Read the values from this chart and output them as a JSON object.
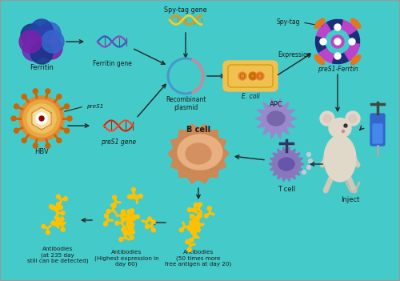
{
  "bg_color": "#45CACA",
  "text_color": "#1a1a1a",
  "labels": {
    "ferritin": "Ferritin",
    "ferritin_gene": "Ferritin gene",
    "spy_tag_gene": "Spy-tag gene",
    "recombinant_plasmid": "Recombinant\nplasmid",
    "ecoli": "E. coli",
    "expression": "Expression",
    "spy_tag": "Spy-tag",
    "preS1_ferritin": "preS1-Ferrtin",
    "preS1": "preS1",
    "preS1_gene": "preS1 gene",
    "hbv": "HBV",
    "b_cell": "B cell",
    "apc": "APC",
    "t_cell": "T cell",
    "inject": "Inject",
    "ab1": "Antibodies\n(50 times more\nfree antigen at day 20)",
    "ab2": "Antibodies\n(Highest expression in\nday 60)",
    "ab3": "Antibodies\n(at 235 day\nstill can be detected)"
  },
  "gold_color": "#FFC000",
  "blue_dark": "#1a2e7a",
  "blue_mid": "#2255cc",
  "blue_ring": "#1a3aaa",
  "purple": "#9944aa",
  "purple2": "#bb44cc",
  "red_dna": "#cc2200",
  "orange": "#e07820",
  "orange2": "#E8A030",
  "ecoli_color": "#F0C050",
  "cell_color": "#d4956a",
  "cell_inner": "#e8b88a",
  "apc_color": "#9988cc",
  "tcell_color": "#8877bb",
  "mouse_color": "#e0d8c8",
  "syringe_color": "#2255cc",
  "gray": "#666666",
  "white": "#ffffff",
  "border_color": "#999999"
}
